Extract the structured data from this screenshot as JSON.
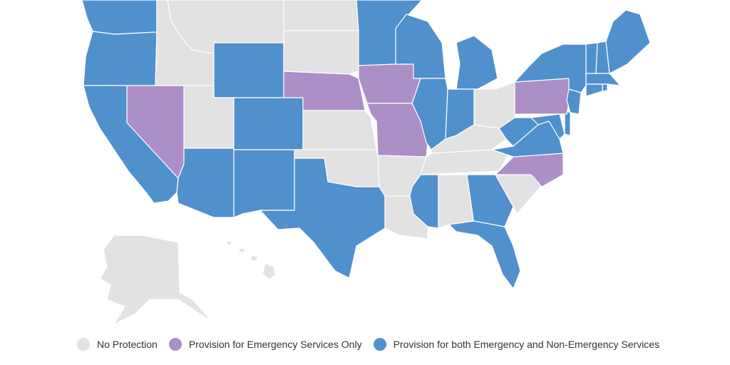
{
  "colors": {
    "none": "#e2e2e2",
    "emergency": "#ac8fc7",
    "both": "#5090cd"
  },
  "legend": [
    {
      "key": "none",
      "label": "No Protection"
    },
    {
      "key": "emergency",
      "label": "Provision for Emergency Services Only"
    },
    {
      "key": "both",
      "label": "Provision for both Emergency and Non-Emergency Services"
    }
  ],
  "states": {
    "WA": "both",
    "OR": "both",
    "CA": "both",
    "NV": "emergency",
    "ID": "none",
    "MT": "none",
    "WY": "both",
    "UT": "none",
    "AZ": "both",
    "CO": "both",
    "NM": "both",
    "ND": "none",
    "SD": "none",
    "NE": "emergency",
    "KS": "none",
    "OK": "none",
    "TX": "both",
    "MN": "both",
    "IA": "emergency",
    "MO": "emergency",
    "AR": "none",
    "LA": "none",
    "WI": "both",
    "IL": "both",
    "MI": "both",
    "IN": "both",
    "OH": "none",
    "KY": "none",
    "TN": "none",
    "MS": "both",
    "AL": "none",
    "GA": "both",
    "FL": "both",
    "SC": "none",
    "NC": "emergency",
    "VA": "both",
    "WV": "both",
    "MD": "both",
    "DE": "both",
    "PA": "emergency",
    "NJ": "both",
    "NY": "both",
    "CT": "both",
    "RI": "both",
    "MA": "both",
    "VT": "both",
    "NH": "both",
    "ME": "both",
    "AK": "none",
    "HI": "none"
  }
}
